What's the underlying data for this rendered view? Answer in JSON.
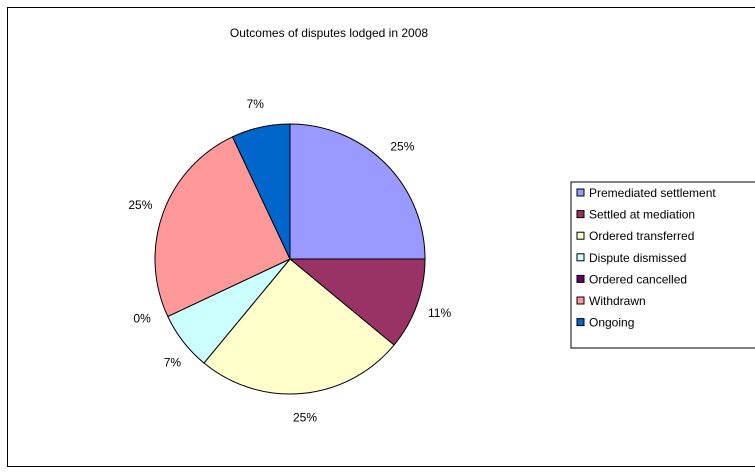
{
  "chart_data": {
    "type": "pie",
    "title": "Outcomes of disputes lodged in 2008",
    "categories": [
      "Premediated settlement",
      "Settled at mediation",
      "Ordered transferred",
      "Dispute dismissed",
      "Ordered cancelled",
      "Withdrawn",
      "Ongoing"
    ],
    "values": [
      25,
      11,
      25,
      7,
      0,
      25,
      7
    ],
    "value_labels": [
      "25%",
      "11%",
      "25%",
      "7%",
      "0%",
      "25%",
      "7%"
    ],
    "colors": [
      "#9999FF",
      "#993366",
      "#FFFFCC",
      "#CCFFFF",
      "#660066",
      "#FF9999",
      "#0066CC"
    ],
    "legend_position": "right",
    "start_angle_deg": 0,
    "direction": "clockwise"
  }
}
